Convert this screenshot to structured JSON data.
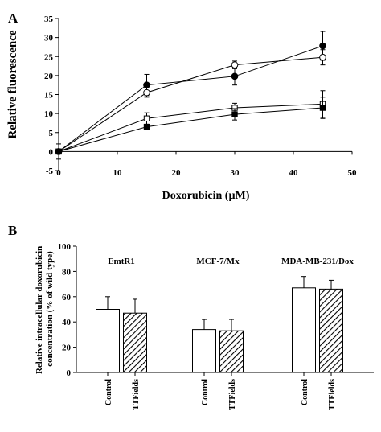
{
  "chart_data": [
    {
      "panel_label": "A",
      "type": "line",
      "xlabel": "Doxorubicin (µM)",
      "ylabel": "Relative fluorescence",
      "xlim": [
        0,
        50
      ],
      "ylim": [
        -5,
        35
      ],
      "xticks": [
        "0",
        "10",
        "20",
        "30",
        "40",
        "50"
      ],
      "yticks": [
        "-5",
        "0",
        "5",
        "10",
        "15",
        "20",
        "25",
        "30",
        "35"
      ],
      "x": [
        0,
        15,
        30,
        45
      ],
      "series": [
        {
          "marker": "filled-circle",
          "values": [
            0,
            17.5,
            19.8,
            27.8
          ],
          "errors": [
            0,
            2.8,
            2.3,
            3.8
          ]
        },
        {
          "marker": "open-circle",
          "values": [
            0,
            15.5,
            22.8,
            24.8
          ],
          "errors": [
            0,
            1.2,
            1.0,
            2.0
          ]
        },
        {
          "marker": "open-square",
          "values": [
            0,
            8.7,
            11.5,
            12.5
          ],
          "errors": [
            0,
            1.5,
            1.2,
            3.5
          ]
        },
        {
          "marker": "filled-square",
          "values": [
            0,
            6.5,
            9.8,
            11.5
          ],
          "errors": [
            2.0,
            0.5,
            1.5,
            2.8
          ]
        }
      ]
    },
    {
      "panel_label": "B",
      "type": "bar",
      "ylabel": "Relative intracellular doxorubicin concentration (% of wild type)",
      "ylim": [
        0,
        100
      ],
      "yticks": [
        "0",
        "20",
        "40",
        "60",
        "80",
        "100"
      ],
      "groups": [
        {
          "label": "EmtR1",
          "bars": [
            {
              "category": "Control",
              "value": 50,
              "error": 10,
              "fill": "open"
            },
            {
              "category": "TTFields",
              "value": 47,
              "error": 11,
              "fill": "hatched"
            }
          ]
        },
        {
          "label": "MCF-7/Mx",
          "bars": [
            {
              "category": "Control",
              "value": 34,
              "error": 8,
              "fill": "open"
            },
            {
              "category": "TTFields",
              "value": 33,
              "error": 9,
              "fill": "hatched"
            }
          ]
        },
        {
          "label": "MDA-MB-231/Dox",
          "bars": [
            {
              "category": "Control",
              "value": 67,
              "error": 9,
              "fill": "open"
            },
            {
              "category": "TTFields",
              "value": 66,
              "error": 7,
              "fill": "hatched"
            }
          ]
        }
      ]
    }
  ]
}
